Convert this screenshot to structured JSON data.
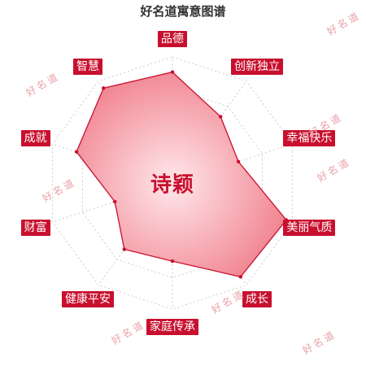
{
  "page_title": "好名道寓意图谱",
  "center_name": "诗颖",
  "watermark": "好名道",
  "colors": {
    "accent": "#c8102e",
    "fill_center": "#ffe7ea",
    "fill_edge": "#f07c8a",
    "grid": "#cccccc"
  },
  "chart_data": {
    "type": "radar",
    "title": "好名道寓意图谱",
    "categories": [
      "品德",
      "创新独立",
      "幸福快乐",
      "美丽气质",
      "成长",
      "家庭传承",
      "健康平安",
      "财富",
      "成就",
      "智慧"
    ],
    "values": [
      0.88,
      0.65,
      0.55,
      0.95,
      0.92,
      0.62,
      0.65,
      0.48,
      0.8,
      0.93
    ],
    "range": [
      0,
      1
    ],
    "grid_rings": 4
  }
}
